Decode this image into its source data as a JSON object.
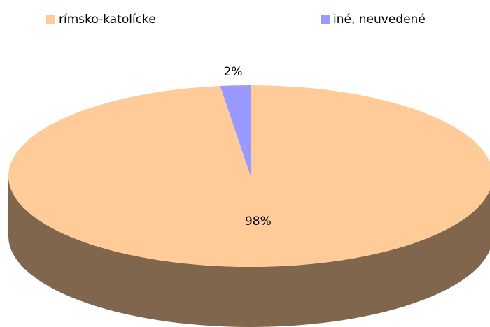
{
  "chart_data": {
    "type": "pie3d",
    "categories": [
      "rímsko-katolícke",
      "iné, neuvedené"
    ],
    "values": [
      98,
      2
    ],
    "value_labels": [
      "98%",
      "2%"
    ],
    "colors": [
      "#ffcc99",
      "#9999ff"
    ],
    "legend": "top"
  }
}
